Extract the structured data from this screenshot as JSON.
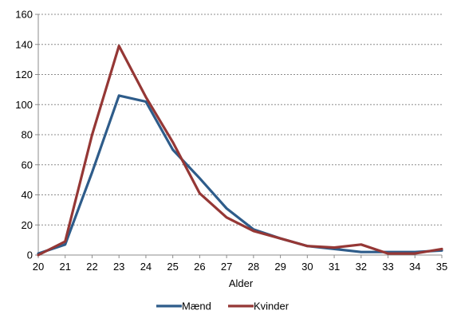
{
  "chart_data": {
    "type": "line",
    "xlabel": "Alder",
    "ylabel": "",
    "x": [
      20,
      21,
      22,
      23,
      24,
      25,
      26,
      27,
      28,
      29,
      30,
      31,
      32,
      33,
      34,
      35
    ],
    "ylim": [
      0,
      160
    ],
    "yticks": [
      0,
      20,
      40,
      60,
      80,
      100,
      120,
      140,
      160
    ],
    "grid": true,
    "legend_position": "bottom",
    "series": [
      {
        "name": "Mænd",
        "color": "#2E5C8A",
        "values": [
          1,
          7,
          55,
          106,
          102,
          70,
          51,
          31,
          17,
          11,
          6,
          4,
          2,
          2,
          2,
          3
        ]
      },
      {
        "name": "Kvinder",
        "color": "#953735",
        "values": [
          0,
          9,
          80,
          139,
          105,
          75,
          41,
          25,
          16,
          11,
          6,
          5,
          7,
          1,
          1,
          4
        ]
      }
    ]
  }
}
